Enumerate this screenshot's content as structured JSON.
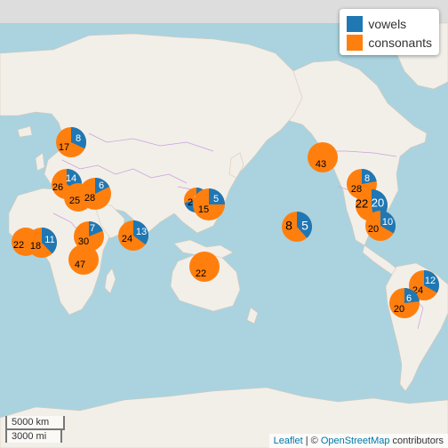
{
  "legend": {
    "items": [
      {
        "label": "vowels",
        "color": "#1f77b4"
      },
      {
        "label": "consonants",
        "color": "#ff7f0e"
      }
    ]
  },
  "scale": {
    "km": "5000 km",
    "mi": "3000 mi"
  },
  "attribution": {
    "leaflet": "Leaflet",
    "separator": " | © ",
    "osm": "OpenStreetMap",
    "suffix": " contributors"
  },
  "colors": {
    "vowels": "#1f77b4",
    "consonants": "#ff7f0e",
    "water": "#aad3df",
    "land": "#f2efe9",
    "border": "#c9a0dc"
  },
  "chart_data": {
    "type": "pie",
    "series": [
      "vowels",
      "consonants"
    ],
    "markers": [
      {
        "vowels": 8,
        "consonants": 17
      },
      {
        "vowels": 14,
        "consonants": 26
      },
      {
        "vowels": 0,
        "consonants": 25
      },
      {
        "vowels": 6,
        "consonants": 28
      },
      {
        "vowels": 5,
        "consonants": 2
      },
      {
        "vowels": 5,
        "consonants": 15
      },
      {
        "vowels": 0,
        "consonants": 43
      },
      {
        "vowels": 8,
        "consonants": 28
      },
      {
        "vowels": 20,
        "consonants": 22
      },
      {
        "vowels": 10,
        "consonants": 20
      },
      {
        "vowels": 5,
        "consonants": 8
      },
      {
        "vowels": 0,
        "consonants": 22
      },
      {
        "vowels": 11,
        "consonants": 18
      },
      {
        "vowels": 7,
        "consonants": 30
      },
      {
        "vowels": 0,
        "consonants": 47
      },
      {
        "vowels": 13,
        "consonants": 24
      },
      {
        "vowels": 0,
        "consonants": 22
      },
      {
        "vowels": 12,
        "consonants": 24
      },
      {
        "vowels": 6,
        "consonants": 20
      }
    ]
  }
}
